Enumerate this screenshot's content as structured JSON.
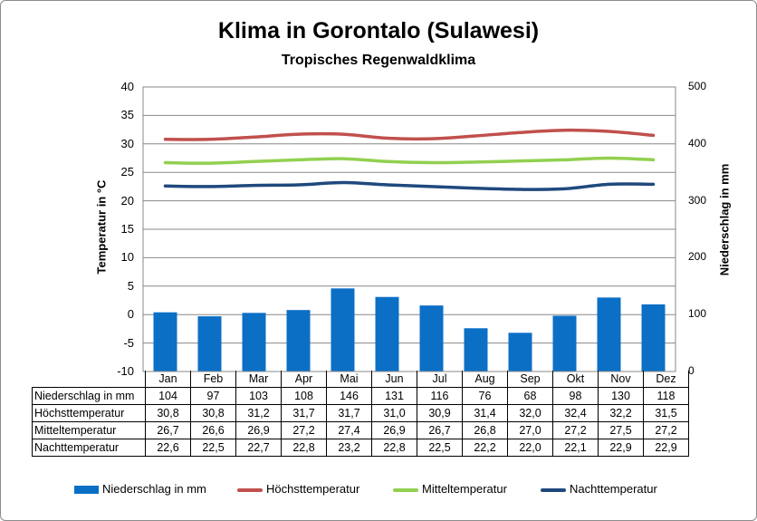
{
  "chart_data": {
    "type": "bar+line",
    "title": "Klima in Gorontalo (Sulawesi)",
    "subtitle": "Tropisches Regenwaldklima",
    "ylabel_left": "Temperatur in °C",
    "ylabel_right": "Niederschlag in mm",
    "ylim_left": [
      -10,
      40
    ],
    "ylim_right": [
      0,
      500
    ],
    "yticks_left": [
      "40",
      "35",
      "30",
      "25",
      "20",
      "15",
      "10",
      "5",
      "0",
      "-5",
      "-10"
    ],
    "yticks_right": [
      "500",
      "400",
      "300",
      "200",
      "100",
      "0"
    ],
    "grid": true,
    "legend_position": "bottom",
    "categories": [
      "Jan",
      "Feb",
      "Mar",
      "Apr",
      "Mai",
      "Jun",
      "Jul",
      "Aug",
      "Sep",
      "Okt",
      "Nov",
      "Dez"
    ],
    "series": [
      {
        "name": "Niederschlag in mm",
        "kind": "bar",
        "axis": "right",
        "color": "#0b6fc6",
        "values": [
          "104",
          "97",
          "103",
          "108",
          "146",
          "131",
          "116",
          "76",
          "68",
          "98",
          "130",
          "118"
        ]
      },
      {
        "name": "Höchsttemperatur",
        "kind": "line",
        "axis": "left",
        "color": "#c0504d",
        "values": [
          "30,8",
          "30,8",
          "31,2",
          "31,7",
          "31,7",
          "31,0",
          "30,9",
          "31,4",
          "32,0",
          "32,4",
          "32,2",
          "31,5"
        ]
      },
      {
        "name": "Mitteltemperatur",
        "kind": "line",
        "axis": "left",
        "color": "#92d050",
        "values": [
          "26,7",
          "26,6",
          "26,9",
          "27,2",
          "27,4",
          "26,9",
          "26,7",
          "26,8",
          "27,0",
          "27,2",
          "27,5",
          "27,2"
        ]
      },
      {
        "name": "Nachttemperatur",
        "kind": "line",
        "axis": "left",
        "color": "#1f497d",
        "values": [
          "22,6",
          "22,5",
          "22,7",
          "22,8",
          "23,2",
          "22,8",
          "22,5",
          "22,2",
          "22,0",
          "22,1",
          "22,9",
          "22,9"
        ]
      }
    ]
  }
}
